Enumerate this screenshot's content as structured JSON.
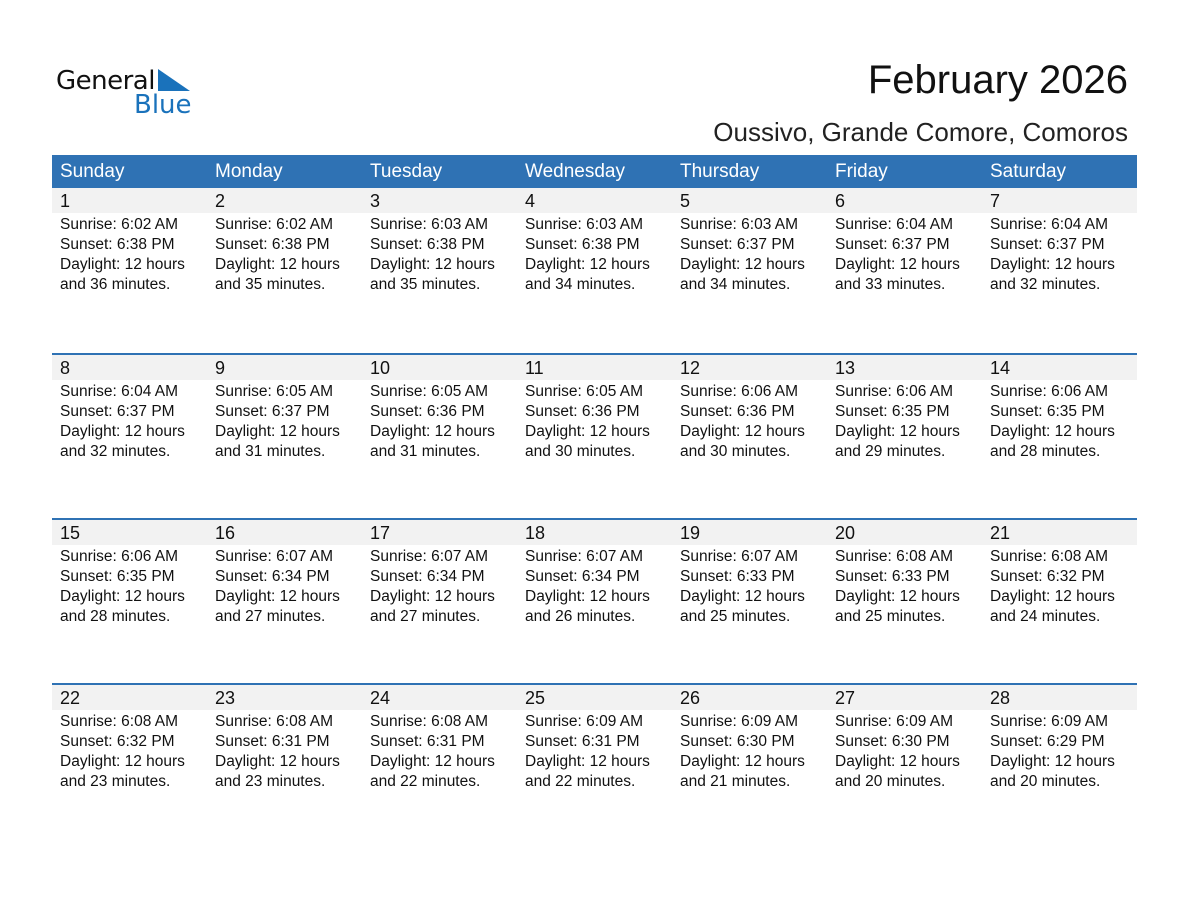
{
  "logo": {
    "line1": "General",
    "line2": "Blue",
    "accent": "#1a72bb"
  },
  "title": "February 2026",
  "subtitle": "Oussivo, Grande Comore, Comoros",
  "colors": {
    "header": "#2f72b4",
    "band": "#f2f2f2"
  },
  "weekdays": [
    "Sunday",
    "Monday",
    "Tuesday",
    "Wednesday",
    "Thursday",
    "Friday",
    "Saturday"
  ],
  "days": [
    {
      "day": "1",
      "sunrise": "Sunrise: 6:02 AM",
      "sunset": "Sunset: 6:38 PM",
      "daylight": "Daylight: 12 hours",
      "minutes": "and 36 minutes."
    },
    {
      "day": "2",
      "sunrise": "Sunrise: 6:02 AM",
      "sunset": "Sunset: 6:38 PM",
      "daylight": "Daylight: 12 hours",
      "minutes": "and 35 minutes."
    },
    {
      "day": "3",
      "sunrise": "Sunrise: 6:03 AM",
      "sunset": "Sunset: 6:38 PM",
      "daylight": "Daylight: 12 hours",
      "minutes": "and 35 minutes."
    },
    {
      "day": "4",
      "sunrise": "Sunrise: 6:03 AM",
      "sunset": "Sunset: 6:38 PM",
      "daylight": "Daylight: 12 hours",
      "minutes": "and 34 minutes."
    },
    {
      "day": "5",
      "sunrise": "Sunrise: 6:03 AM",
      "sunset": "Sunset: 6:37 PM",
      "daylight": "Daylight: 12 hours",
      "minutes": "and 34 minutes."
    },
    {
      "day": "6",
      "sunrise": "Sunrise: 6:04 AM",
      "sunset": "Sunset: 6:37 PM",
      "daylight": "Daylight: 12 hours",
      "minutes": "and 33 minutes."
    },
    {
      "day": "7",
      "sunrise": "Sunrise: 6:04 AM",
      "sunset": "Sunset: 6:37 PM",
      "daylight": "Daylight: 12 hours",
      "minutes": "and 32 minutes."
    },
    {
      "day": "8",
      "sunrise": "Sunrise: 6:04 AM",
      "sunset": "Sunset: 6:37 PM",
      "daylight": "Daylight: 12 hours",
      "minutes": "and 32 minutes."
    },
    {
      "day": "9",
      "sunrise": "Sunrise: 6:05 AM",
      "sunset": "Sunset: 6:37 PM",
      "daylight": "Daylight: 12 hours",
      "minutes": "and 31 minutes."
    },
    {
      "day": "10",
      "sunrise": "Sunrise: 6:05 AM",
      "sunset": "Sunset: 6:36 PM",
      "daylight": "Daylight: 12 hours",
      "minutes": "and 31 minutes."
    },
    {
      "day": "11",
      "sunrise": "Sunrise: 6:05 AM",
      "sunset": "Sunset: 6:36 PM",
      "daylight": "Daylight: 12 hours",
      "minutes": "and 30 minutes."
    },
    {
      "day": "12",
      "sunrise": "Sunrise: 6:06 AM",
      "sunset": "Sunset: 6:36 PM",
      "daylight": "Daylight: 12 hours",
      "minutes": "and 30 minutes."
    },
    {
      "day": "13",
      "sunrise": "Sunrise: 6:06 AM",
      "sunset": "Sunset: 6:35 PM",
      "daylight": "Daylight: 12 hours",
      "minutes": "and 29 minutes."
    },
    {
      "day": "14",
      "sunrise": "Sunrise: 6:06 AM",
      "sunset": "Sunset: 6:35 PM",
      "daylight": "Daylight: 12 hours",
      "minutes": "and 28 minutes."
    },
    {
      "day": "15",
      "sunrise": "Sunrise: 6:06 AM",
      "sunset": "Sunset: 6:35 PM",
      "daylight": "Daylight: 12 hours",
      "minutes": "and 28 minutes."
    },
    {
      "day": "16",
      "sunrise": "Sunrise: 6:07 AM",
      "sunset": "Sunset: 6:34 PM",
      "daylight": "Daylight: 12 hours",
      "minutes": "and 27 minutes."
    },
    {
      "day": "17",
      "sunrise": "Sunrise: 6:07 AM",
      "sunset": "Sunset: 6:34 PM",
      "daylight": "Daylight: 12 hours",
      "minutes": "and 27 minutes."
    },
    {
      "day": "18",
      "sunrise": "Sunrise: 6:07 AM",
      "sunset": "Sunset: 6:34 PM",
      "daylight": "Daylight: 12 hours",
      "minutes": "and 26 minutes."
    },
    {
      "day": "19",
      "sunrise": "Sunrise: 6:07 AM",
      "sunset": "Sunset: 6:33 PM",
      "daylight": "Daylight: 12 hours",
      "minutes": "and 25 minutes."
    },
    {
      "day": "20",
      "sunrise": "Sunrise: 6:08 AM",
      "sunset": "Sunset: 6:33 PM",
      "daylight": "Daylight: 12 hours",
      "minutes": "and 25 minutes."
    },
    {
      "day": "21",
      "sunrise": "Sunrise: 6:08 AM",
      "sunset": "Sunset: 6:32 PM",
      "daylight": "Daylight: 12 hours",
      "minutes": "and 24 minutes."
    },
    {
      "day": "22",
      "sunrise": "Sunrise: 6:08 AM",
      "sunset": "Sunset: 6:32 PM",
      "daylight": "Daylight: 12 hours",
      "minutes": "and 23 minutes."
    },
    {
      "day": "23",
      "sunrise": "Sunrise: 6:08 AM",
      "sunset": "Sunset: 6:31 PM",
      "daylight": "Daylight: 12 hours",
      "minutes": "and 23 minutes."
    },
    {
      "day": "24",
      "sunrise": "Sunrise: 6:08 AM",
      "sunset": "Sunset: 6:31 PM",
      "daylight": "Daylight: 12 hours",
      "minutes": "and 22 minutes."
    },
    {
      "day": "25",
      "sunrise": "Sunrise: 6:09 AM",
      "sunset": "Sunset: 6:31 PM",
      "daylight": "Daylight: 12 hours",
      "minutes": "and 22 minutes."
    },
    {
      "day": "26",
      "sunrise": "Sunrise: 6:09 AM",
      "sunset": "Sunset: 6:30 PM",
      "daylight": "Daylight: 12 hours",
      "minutes": "and 21 minutes."
    },
    {
      "day": "27",
      "sunrise": "Sunrise: 6:09 AM",
      "sunset": "Sunset: 6:30 PM",
      "daylight": "Daylight: 12 hours",
      "minutes": "and 20 minutes."
    },
    {
      "day": "28",
      "sunrise": "Sunrise: 6:09 AM",
      "sunset": "Sunset: 6:29 PM",
      "daylight": "Daylight: 12 hours",
      "minutes": "and 20 minutes."
    }
  ]
}
